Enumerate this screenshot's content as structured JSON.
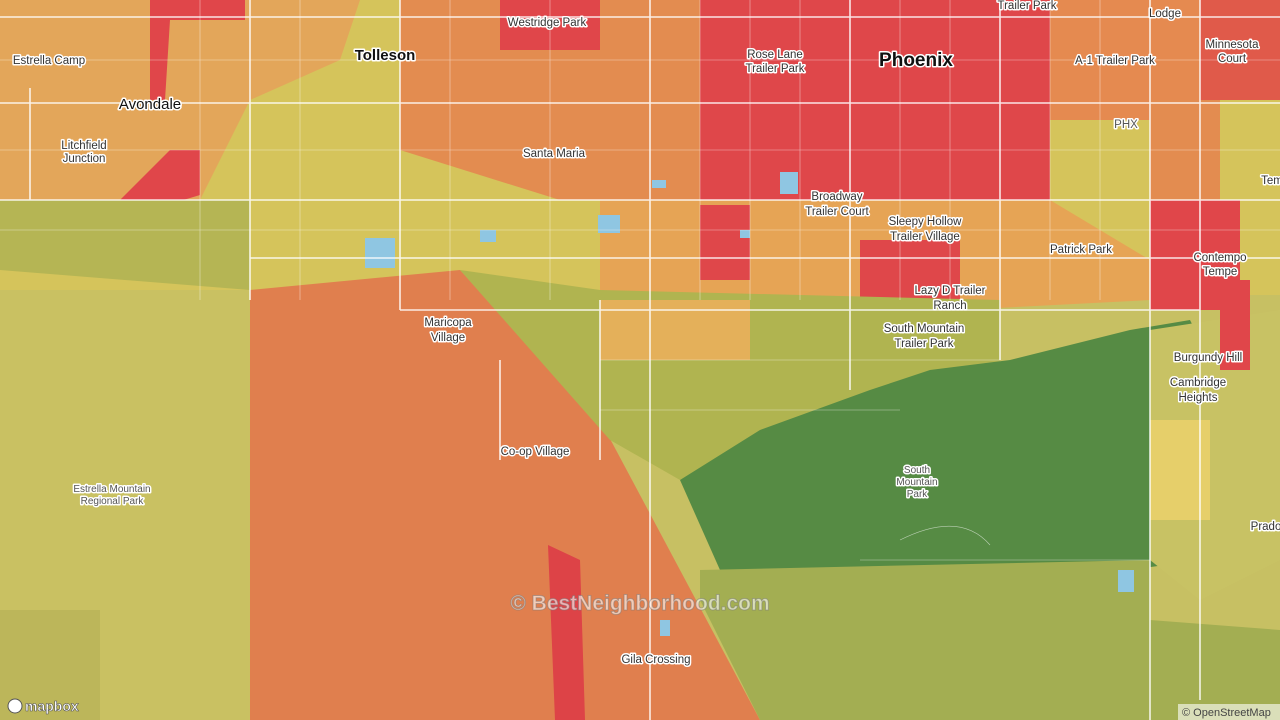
{
  "places": [
    {
      "lines": [
        "Estrella Camp"
      ]
    },
    {
      "lines": [
        "Avondale"
      ]
    },
    {
      "lines": [
        "Litchfield",
        "Junction"
      ]
    },
    {
      "lines": [
        "Tolleson"
      ]
    },
    {
      "lines": [
        "Westridge Park"
      ]
    },
    {
      "lines": [
        "Phoenix"
      ]
    },
    {
      "lines": [
        "Rose Lane",
        "Trailer Park"
      ]
    },
    {
      "lines": [
        "Trailer Park"
      ]
    },
    {
      "lines": [
        "Lodge"
      ]
    },
    {
      "lines": [
        "Minnesota",
        "Court"
      ]
    },
    {
      "lines": [
        "A-1 Trailer Park"
      ]
    },
    {
      "lines": [
        "PHX"
      ]
    },
    {
      "lines": [
        "Santa Maria"
      ]
    },
    {
      "lines": [
        "Broadway",
        "Trailer Court"
      ]
    },
    {
      "lines": [
        "Sleepy Hollow",
        "Trailer Village"
      ]
    },
    {
      "lines": [
        "Patrick Park"
      ]
    },
    {
      "lines": [
        "Contempo",
        "Tempe"
      ]
    },
    {
      "lines": [
        "Lazy D Trailer",
        "Ranch"
      ]
    },
    {
      "lines": [
        "South Mountain",
        "Trailer Park"
      ]
    },
    {
      "lines": [
        "Maricopa",
        "Village"
      ]
    },
    {
      "lines": [
        "Burgundy Hill"
      ]
    },
    {
      "lines": [
        "Cambridge",
        "Heights"
      ]
    },
    {
      "lines": [
        "Co-op Village"
      ]
    },
    {
      "lines": [
        "South",
        "Mountain",
        "Park"
      ]
    },
    {
      "lines": [
        "Estrella Mountain",
        "Regional Park"
      ]
    },
    {
      "lines": [
        "Gila Crossing"
      ]
    },
    {
      "lines": [
        "Prado"
      ]
    },
    {
      "lines": [
        "Tem"
      ]
    }
  ],
  "watermark": "© BestNeighborhood.com",
  "logo": "mapbox",
  "attribution": "© OpenStreetMap"
}
